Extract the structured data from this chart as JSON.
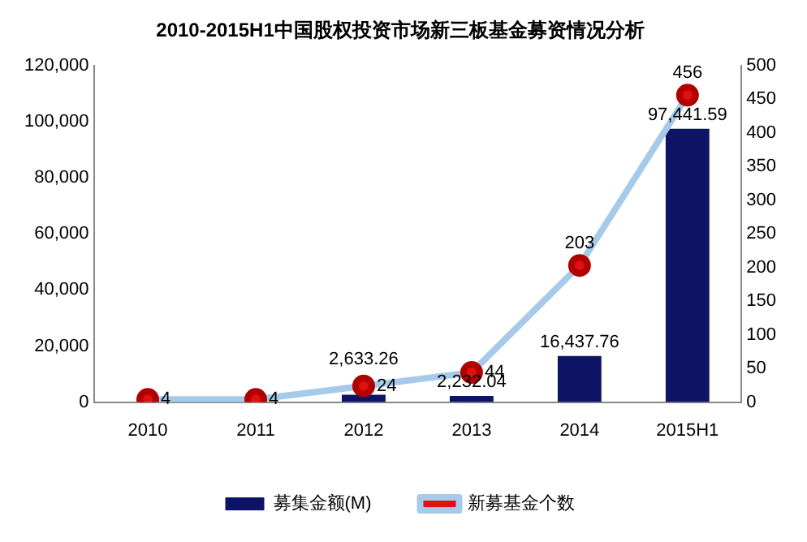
{
  "chart_data": {
    "type": "bar",
    "title": "2010-2015H1中国股权投资市场新三板基金募资情况分析",
    "categories": [
      "2010",
      "2011",
      "2012",
      "2013",
      "2014",
      "2015H1"
    ],
    "series": [
      {
        "name": "募集金额(M)",
        "color": "#0d1466",
        "values": [
          null,
          null,
          2633.26,
          2232.04,
          16437.76,
          97441.59
        ],
        "value_labels": [
          null,
          null,
          "2,633.26",
          "2,232.04",
          "16,437.76",
          "97,441.59"
        ]
      },
      {
        "name": "新募基金个数",
        "type": "line",
        "axis": "y2",
        "color": "#a6cbea",
        "marker": "circle",
        "values": [
          4,
          4,
          24,
          44,
          203,
          456
        ],
        "value_labels": [
          "4",
          "4",
          "24",
          "44",
          "203",
          "456"
        ]
      }
    ],
    "ylim": [
      0,
      120000
    ],
    "yticks": [
      0,
      {
        "value": 20000,
        "label": "20,000"
      },
      {
        "value": 40000,
        "label": "40,000"
      },
      {
        "value": 60000,
        "label": "60,000"
      },
      {
        "value": 80000,
        "label": "80,000"
      },
      {
        "value": 100000,
        "label": "100,000"
      },
      {
        "value": 120000,
        "label": "120,000"
      }
    ],
    "y2lim": [
      0,
      500
    ],
    "y2ticks": [
      0,
      50,
      100,
      150,
      200,
      250,
      300,
      350,
      400,
      450,
      500
    ],
    "grid": false,
    "legend": "bottom"
  }
}
